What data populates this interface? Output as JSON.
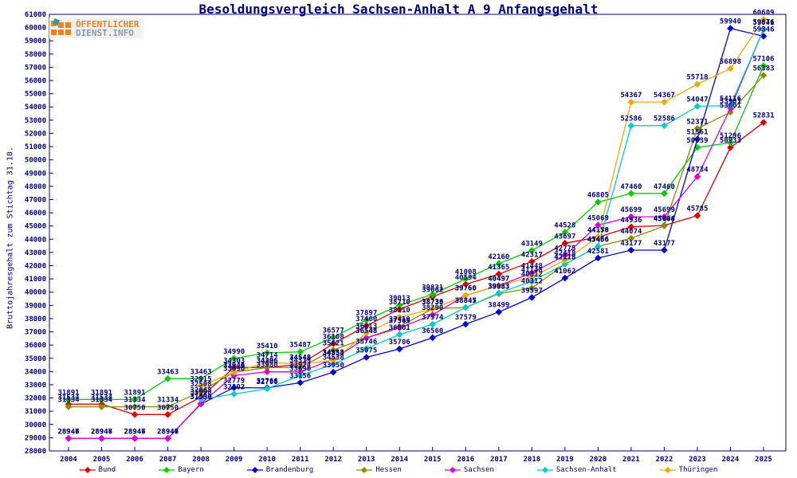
{
  "header": {
    "title": "Besoldungsvergleich Sachsen-Anhalt A 9 Anfangsgehalt",
    "logo": {
      "line1": "ÖFFENTLICHER",
      "line2": "DIENST.INFO"
    }
  },
  "axes": {
    "y_title": "Bruttojahresgehalt zum Stichtag 31.10.",
    "y_min": 28000,
    "y_max": 61000,
    "y_step": 1000,
    "axis_color": "#000080"
  },
  "chart_data": {
    "type": "line",
    "title": "Besoldungsvergleich Sachsen-Anhalt A 9 Anfangsgehalt",
    "xlabel": "",
    "ylabel": "Bruttojahresgehalt zum Stichtag 31.10.",
    "ylim": [
      28000,
      61000
    ],
    "grid": false,
    "legend_position": "bottom",
    "point_labels": true,
    "x": [
      2004,
      2005,
      2006,
      2007,
      2008,
      2009,
      2010,
      2011,
      2012,
      2013,
      2014,
      2015,
      2016,
      2017,
      2018,
      2019,
      2020,
      2021,
      2022,
      2023,
      2024,
      2025
    ],
    "series": [
      {
        "name": "Bund",
        "color": "#dd0000",
        "values": [
          31534,
          31534,
          30750,
          30750,
          32068,
          34303,
          34306,
          34548,
          36108,
          37460,
          38710,
          39662,
          40594,
          41365,
          42317,
          43697,
          44159,
          44936,
          45044,
          45785,
          50933,
          52831
        ]
      },
      {
        "name": "Bayern",
        "color": "#00cc00",
        "values": [
          31891,
          31891,
          31891,
          33463,
          33463,
          34990,
          35410,
          35487,
          36577,
          37897,
          39013,
          39831,
          41008,
          42160,
          43149,
          44528,
          46805,
          47460,
          47460,
          50939,
          51296,
          57106
        ]
      },
      {
        "name": "Brandenburg",
        "color": "#0000dd",
        "values": [
          28946,
          28946,
          28946,
          28946,
          31550,
          32779,
          32766,
          33156,
          33950,
          35075,
          35706,
          36560,
          37579,
          38499,
          39597,
          41062,
          42581,
          43177,
          43177,
          51561,
          59940,
          59346
        ]
      },
      {
        "name": "Hessen",
        "color": "#8b8b00",
        "values": [
          31334,
          31334,
          31334,
          31334,
          32508,
          33944,
          34296,
          34319,
          35621,
          36548,
          37410,
          38736,
          38845,
          39883,
          40312,
          42113,
          43456,
          44074,
          45008,
          52371,
          53601,
          56383
        ]
      },
      {
        "name": "Sachsen",
        "color": "#dd00dd",
        "values": [
          28947,
          28947,
          28947,
          28947,
          31590,
          33696,
          33980,
          33974,
          34938,
          36545,
          37305,
          38290,
          39760,
          40497,
          41448,
          42775,
          45069,
          45699,
          45699,
          48734,
          53901,
          59876
        ]
      },
      {
        "name": "Sachsen-Anhalt",
        "color": "#00cccc",
        "values": [
          null,
          null,
          null,
          null,
          31908,
          32302,
          32706,
          33696,
          34538,
          35746,
          36801,
          37574,
          38847,
          39933,
          40812,
          42118,
          43466,
          52586,
          52586,
          54047,
          54116,
          59841
        ]
      },
      {
        "name": "Thüringen",
        "color": "#eeaa00",
        "values": [
          null,
          null,
          null,
          null,
          32915,
          33940,
          34714,
          34548,
          34854,
          36913,
          38110,
          38733,
          39760,
          40497,
          41148,
          42418,
          44176,
          54367,
          54367,
          55718,
          56898,
          60609
        ]
      }
    ]
  }
}
